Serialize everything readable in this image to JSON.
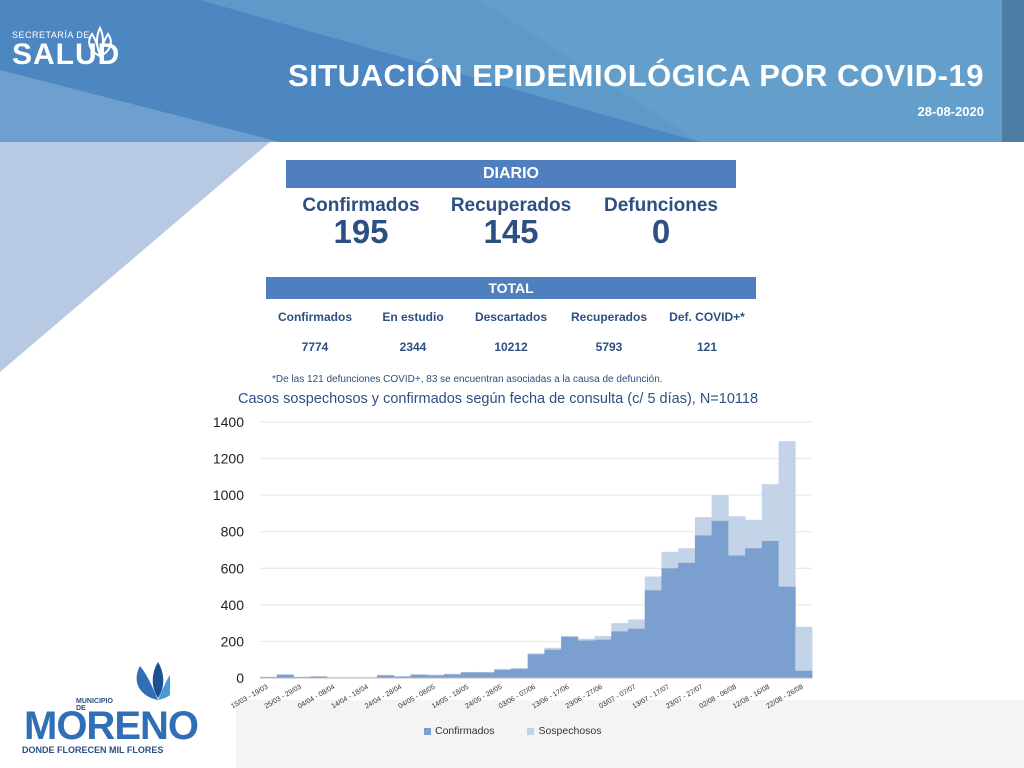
{
  "header": {
    "org_prefix": "SECRETARÍA DE",
    "org_name": "SALUD",
    "title": "SITUACIÓN EPIDEMIOLÓGICA POR COVID-19",
    "date": "28-08-2020"
  },
  "daily": {
    "heading": "DIARIO",
    "items": [
      {
        "label": "Confirmados",
        "value": "195"
      },
      {
        "label": "Recuperados",
        "value": "145"
      },
      {
        "label": "Defunciones",
        "value": "0"
      }
    ]
  },
  "total": {
    "heading": "TOTAL",
    "items": [
      {
        "label": "Confirmados",
        "value": "7774"
      },
      {
        "label": "En estudio",
        "value": "2344"
      },
      {
        "label": "Descartados",
        "value": "10212"
      },
      {
        "label": "Recuperados",
        "value": "5793"
      },
      {
        "label": "Def. COVID+*",
        "value": "121"
      }
    ]
  },
  "footnote": "*De las 121 defunciones COVID+, 83 se encuentran asociadas a la causa de defunción.",
  "footer_logo": {
    "prefix": "MUNICIPIO DE",
    "name": "MORENO",
    "tagline": "DONDE FLORECEN MIL FLORES"
  },
  "colors": {
    "banner": "#5a93c7",
    "panel": "#4f7fbf",
    "text_dark": "#2e4f82",
    "confirmados": "#7b9fcf",
    "sospechosos": "#c3d3e8"
  },
  "chart_data": {
    "type": "area",
    "stacked": true,
    "title": "Casos sospechosos y confirmados según fecha de consulta (c/ 5 días), N=10118",
    "xlabel": "",
    "ylabel": "",
    "ylim": [
      0,
      1400
    ],
    "yticks": [
      0,
      200,
      400,
      600,
      800,
      1000,
      1200,
      1400
    ],
    "grid": true,
    "legend_position": "bottom",
    "tick_labels": [
      "15/03 - 19/03",
      "25/03 - 29/03",
      "04/04 - 08/04",
      "14/04 - 18/04",
      "24/04 - 28/04",
      "04/05 - 08/05",
      "14/05 - 18/05",
      "24/05 - 28/05",
      "03/06 - 07/06",
      "13/06 - 17/06",
      "23/06 - 27/06",
      "03/07 - 07/07",
      "13/07 - 17/07",
      "23/07 - 27/07",
      "02/08 - 06/08",
      "12/08 - 16/08",
      "22/08 - 26/08"
    ],
    "series": [
      {
        "name": "Confirmados",
        "values": [
          5,
          18,
          5,
          8,
          3,
          3,
          3,
          15,
          8,
          18,
          15,
          20,
          30,
          30,
          45,
          50,
          130,
          155,
          225,
          205,
          210,
          255,
          270,
          480,
          600,
          630,
          780,
          860,
          670,
          710,
          750,
          500,
          40
        ]
      },
      {
        "name": "Sospechosos",
        "values": [
          2,
          2,
          2,
          2,
          2,
          2,
          2,
          2,
          2,
          3,
          3,
          3,
          3,
          3,
          5,
          5,
          5,
          10,
          5,
          10,
          20,
          45,
          50,
          75,
          90,
          80,
          100,
          140,
          215,
          155,
          310,
          795,
          240
        ]
      }
    ]
  }
}
